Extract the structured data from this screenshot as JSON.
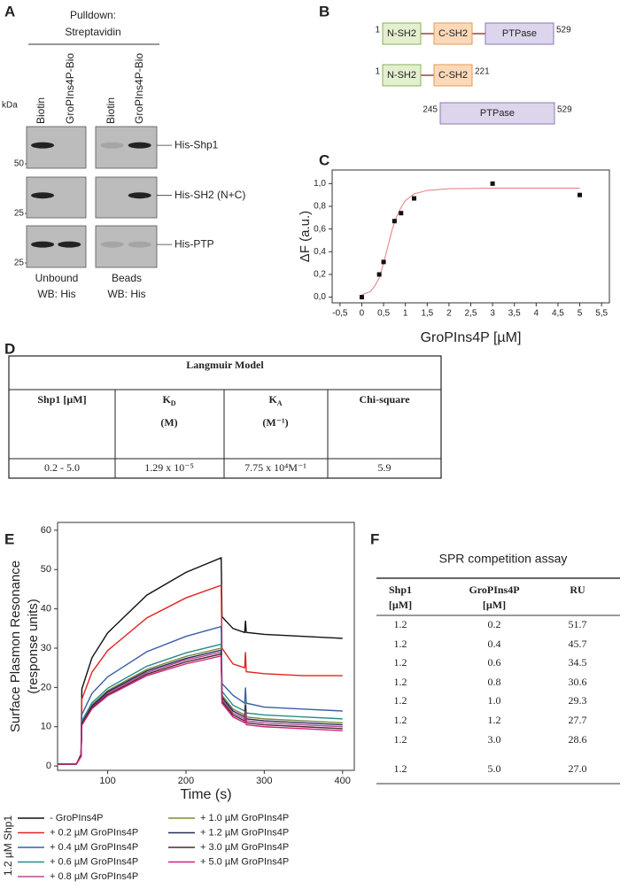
{
  "panel_a": {
    "label": "A",
    "header": [
      "Pulldown:",
      "Streptavidin"
    ],
    "lanes": [
      "Biotin",
      "GroPIns4P-Bio",
      "Biotin",
      "GroPIns4P-Bio"
    ],
    "kda_label": "kDa",
    "markers": [
      "50",
      "25",
      "25"
    ],
    "bands": [
      "His-Shp1",
      "His-SH2 (N+C)",
      "His-PTP"
    ],
    "groups": [
      [
        "Unbound",
        "WB: His"
      ],
      [
        "Beads",
        "WB: His"
      ]
    ]
  },
  "panel_b": {
    "label": "B",
    "constructs": [
      {
        "start": "1",
        "end": "529",
        "domains": [
          "N-SH2",
          "C-SH2",
          "PTPase"
        ]
      },
      {
        "start": "1",
        "end": "221",
        "domains": [
          "N-SH2",
          "C-SH2"
        ]
      },
      {
        "start": "245",
        "end": "529",
        "domains": [
          "PTPase"
        ]
      }
    ]
  },
  "panel_d": {
    "label": "D",
    "title": "Langmuir Model",
    "headers": [
      {
        "text": "Shp1 [µM]"
      },
      {
        "text": "K",
        "sub": "D",
        "unit": "(M)"
      },
      {
        "text": "K",
        "sub": "A",
        "unit": "(M⁻¹)"
      },
      {
        "text": "Chi-square"
      }
    ],
    "rows": [
      [
        "0.2 - 5.0",
        "1.29 x 10⁻⁵",
        "7.75 x 10⁴M⁻¹",
        "5.9"
      ]
    ]
  },
  "panel_f": {
    "label": "F",
    "title": "SPR competition assay",
    "headers": [
      [
        "Shp1",
        "[µM]"
      ],
      [
        "GroPIns4P",
        "[µM]"
      ],
      [
        "RU"
      ]
    ],
    "rows": [
      [
        "1.2",
        "0.2",
        "51.7"
      ],
      [
        "1.2",
        "0.4",
        "45.7"
      ],
      [
        "1.2",
        "0.6",
        "34.5"
      ],
      [
        "1.2",
        "0.8",
        "30.6"
      ],
      [
        "1.2",
        "1.0",
        "29.3"
      ],
      [
        "1.2",
        "1.2",
        "27.7"
      ],
      [
        "1.2",
        "3.0",
        "28.6"
      ],
      [
        "1.2",
        "5.0",
        "27.0"
      ]
    ]
  },
  "chart_data": [
    {
      "type": "scatter",
      "panel": "C",
      "x_label": "GroPIns4P [µM]",
      "y_label": "ΔF (a.u.)",
      "color": "#111111",
      "x": [
        0,
        0.4,
        0.5,
        0.75,
        0.9,
        1.2,
        3,
        5
      ],
      "values": [
        0,
        0.2,
        0.31,
        0.67,
        0.74,
        0.87,
        1.0,
        0.9
      ],
      "fit": {
        "color": "#e57b7b",
        "x": [
          0,
          0.2,
          0.3,
          0.4,
          0.5,
          0.6,
          0.7,
          0.8,
          0.9,
          1.0,
          1.2,
          1.5,
          2,
          3,
          4,
          5
        ],
        "values": [
          0.02,
          0.05,
          0.1,
          0.17,
          0.3,
          0.45,
          0.6,
          0.71,
          0.79,
          0.85,
          0.91,
          0.94,
          0.955,
          0.96,
          0.96,
          0.96
        ]
      },
      "xlim": [
        -0.68,
        5.68
      ],
      "ylim": [
        -0.05,
        1.12
      ],
      "xticks": [
        {
          "value": -0.5,
          "label": "-0,5"
        },
        {
          "value": 0,
          "label": "0"
        },
        {
          "value": 0.5,
          "label": "0,5"
        },
        {
          "value": 1,
          "label": "1"
        },
        {
          "value": 1.5,
          "label": "1,5"
        },
        {
          "value": 2,
          "label": "2"
        },
        {
          "value": 2.5,
          "label": "2,5"
        },
        {
          "value": 3,
          "label": "3"
        },
        {
          "value": 3.5,
          "label": "3,5"
        },
        {
          "value": 4,
          "label": "4"
        },
        {
          "value": 4.5,
          "label": "4,5"
        },
        {
          "value": 5,
          "label": "5"
        },
        {
          "value": 5.5,
          "label": "5,5"
        }
      ],
      "yticks": [
        {
          "value": 0,
          "label": "0,0"
        },
        {
          "value": 0.2,
          "label": "0,2"
        },
        {
          "value": 0.4,
          "label": "0,4"
        },
        {
          "value": 0.6,
          "label": "0,6"
        },
        {
          "value": 0.8,
          "label": "0,8"
        },
        {
          "value": 1,
          "label": "1,0"
        }
      ]
    },
    {
      "type": "line",
      "panel": "E",
      "x_label": "Time (s)",
      "y_label": [
        "Surface Plasmon Resonance",
        "(response units)"
      ],
      "legend_title": "1.2 µM Shp1",
      "x": [
        36,
        60,
        66,
        67,
        80,
        100,
        150,
        200,
        245,
        246,
        260,
        275,
        276,
        277,
        300,
        350,
        400
      ],
      "xlim": [
        36,
        415
      ],
      "ylim": [
        -1.1,
        62
      ],
      "xticks": [
        100,
        200,
        300,
        400
      ],
      "yticks": [
        0,
        10,
        20,
        30,
        40,
        50,
        60
      ],
      "series": [
        {
          "name": "- GroPIns4P",
          "color": "#111111",
          "values": [
            0.5,
            0.5,
            3,
            19.6,
            27.6,
            33.9,
            43.5,
            49.3,
            53,
            38,
            35,
            34,
            37,
            34,
            33.5,
            33,
            32.5
          ]
        },
        {
          "name": "+ 0.2 µM GroPIns4P",
          "color": "#e02424",
          "values": [
            0.5,
            0.5,
            2.5,
            17,
            23.9,
            29.4,
            37.7,
            42.8,
            46,
            30,
            26,
            25,
            29,
            24,
            23.5,
            23,
            23
          ]
        },
        {
          "name": "+ 0.4 µM GroPIns4P",
          "color": "#3a5ea8",
          "values": [
            0.5,
            0.5,
            2.5,
            13.1,
            18.5,
            22.7,
            29.1,
            33,
            35.5,
            21,
            18,
            16,
            20,
            16,
            15,
            14.5,
            14
          ]
        },
        {
          "name": "+ 0.6 µM GroPIns4P",
          "color": "#2a8a8a",
          "values": [
            0.5,
            0.5,
            2.5,
            11.5,
            16.1,
            19.8,
            25.4,
            28.8,
            31,
            19,
            15.5,
            14,
            17,
            13.5,
            13,
            12.5,
            12
          ]
        },
        {
          "name": "+ 0.8 µM GroPIns4P",
          "color": "#b04a9a",
          "values": [
            0.5,
            0.5,
            2.5,
            10.7,
            15.1,
            18.6,
            23.8,
            27,
            29,
            17,
            13.5,
            12,
            15,
            11.5,
            11,
            10.5,
            10
          ]
        },
        {
          "name": "+ 1.0 µM GroPIns4P",
          "color": "#7a8a3a",
          "values": [
            0.5,
            0.5,
            2.5,
            11.1,
            15.6,
            19.2,
            24.6,
            27.9,
            30,
            18,
            14.5,
            13,
            16,
            12.5,
            12,
            11.5,
            11
          ]
        },
        {
          "name": "+ 1.2 µM GroPIns4P",
          "color": "#2a2a5a",
          "values": [
            0.5,
            0.5,
            2.5,
            10.9,
            15.3,
            18.9,
            24.2,
            27.4,
            29.5,
            17.5,
            14,
            12.5,
            15.5,
            12,
            11.5,
            11,
            10.5
          ]
        },
        {
          "name": "+ 3.0 µM GroPIns4P",
          "color": "#4a2a2a",
          "values": [
            0.5,
            0.5,
            2.5,
            10.5,
            14.8,
            18.2,
            23.4,
            26.5,
            28.5,
            16.5,
            13,
            11.5,
            14.5,
            11,
            10.5,
            10,
            9.5
          ]
        },
        {
          "name": "+ 5.0 µM GroPIns4P",
          "color": "#d4207a",
          "values": [
            0.5,
            0.5,
            2.5,
            10.4,
            14.6,
            17.9,
            23,
            26,
            28,
            16,
            12.5,
            11,
            14,
            10.5,
            10,
            9.5,
            9
          ]
        }
      ]
    }
  ]
}
